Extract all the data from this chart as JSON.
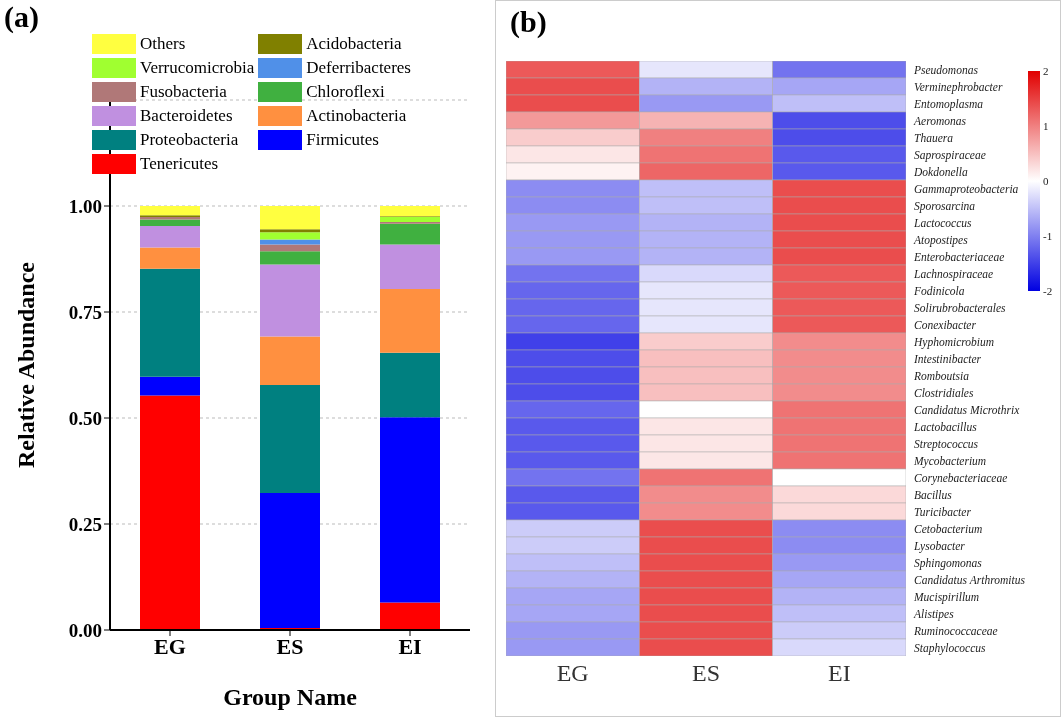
{
  "chart_data": [
    {
      "type": "bar",
      "title": "(a)",
      "xlabel": "Group Name",
      "ylabel": "Relative Abundance",
      "stacked": true,
      "categories": [
        "EG",
        "ES",
        "EI"
      ],
      "ylim": [
        0,
        1.25
      ],
      "yticks": [
        {
          "value": 0,
          "label": "0.00"
        },
        {
          "value": 0.25,
          "label": "0.25"
        },
        {
          "value": 0.5,
          "label": "0.50"
        },
        {
          "value": 0.75,
          "label": "0.75"
        },
        {
          "value": 1,
          "label": "1.00"
        }
      ],
      "grid": "y",
      "legend": "top left",
      "series": [
        {
          "name": "Tenericutes",
          "color": "#ff0000",
          "values": [
            0.553,
            0.005,
            0.065
          ]
        },
        {
          "name": "Firmicutes",
          "color": "#0000ff",
          "values": [
            0.044,
            0.318,
            0.437
          ]
        },
        {
          "name": "Proteobacteria",
          "color": "#008080",
          "values": [
            0.255,
            0.255,
            0.152
          ]
        },
        {
          "name": "Actinobacteria",
          "color": "#ff9040",
          "values": [
            0.05,
            0.114,
            0.15
          ]
        },
        {
          "name": "Bacteroidetes",
          "color": "#c090e0",
          "values": [
            0.051,
            0.17,
            0.105
          ]
        },
        {
          "name": "Chloroflexi",
          "color": "#40b040",
          "values": [
            0.015,
            0.031,
            0.049
          ]
        },
        {
          "name": "Fusobacteria",
          "color": "#b07878",
          "values": [
            0.006,
            0.016,
            0.004
          ]
        },
        {
          "name": "Deferribacteres",
          "color": "#5090e8",
          "values": [
            0,
            0.012,
            0
          ]
        },
        {
          "name": "Verrucomicrobia",
          "color": "#a0ff30",
          "values": [
            0,
            0.017,
            0.012
          ]
        },
        {
          "name": "Acidobacteria",
          "color": "#808000",
          "values": [
            0.004,
            0.007,
            0.002
          ]
        },
        {
          "name": "Others",
          "color": "#ffff40",
          "values": [
            0.022,
            0.055,
            0.024
          ]
        }
      ]
    },
    {
      "type": "heatmap",
      "title": "(b)",
      "categories": [
        "EG",
        "ES",
        "EI"
      ],
      "clim": [
        -2,
        2
      ],
      "cticks": [
        -2,
        -1,
        0,
        1,
        2
      ],
      "y_categories": [
        "Pseudomonas",
        "Verminephrobacter",
        "Entomoplasma",
        "Aeromonas",
        "Thauera",
        "Saprospiraceae",
        "Dokdonella",
        "Gammaproteobacteria",
        "Sporosarcina",
        "Lactococcus",
        "Atopostipes",
        "Enterobacteriaceae",
        "Lachnospiraceae",
        " Fodinicola",
        "Solirubrobacterales",
        "Conexibacter",
        "Hyphomicrobium",
        "Intestinibacter",
        "Romboutsia",
        "Clostridiales",
        "Candidatus Microthrix",
        "Lactobacillus",
        "Streptococcus",
        "Mycobacterium",
        "Corynebacteriaceae",
        "Bacillus",
        "Turicibacter",
        "Cetobacterium",
        "Lysobacter",
        "Sphingomonas",
        "Candidatus Arthromitus",
        "Mucispirillum",
        "Alistipes",
        "Ruminococcaceae",
        "Staphylococcus"
      ],
      "cells": [
        [
          1.3,
          -0.2,
          -1.1
        ],
        [
          1.4,
          -0.6,
          -0.7
        ],
        [
          1.4,
          -0.8,
          -0.5
        ],
        [
          0.8,
          0.6,
          -1.4
        ],
        [
          0.4,
          1.0,
          -1.4
        ],
        [
          0.2,
          1.1,
          -1.3
        ],
        [
          0.1,
          1.2,
          -1.3
        ],
        [
          -0.9,
          -0.5,
          1.4
        ],
        [
          -0.9,
          -0.5,
          1.4
        ],
        [
          -0.8,
          -0.6,
          1.4
        ],
        [
          -0.8,
          -0.6,
          1.4
        ],
        [
          -0.8,
          -0.6,
          1.4
        ],
        [
          -1.1,
          -0.3,
          1.3
        ],
        [
          -1.2,
          -0.2,
          1.3
        ],
        [
          -1.2,
          -0.2,
          1.3
        ],
        [
          -1.2,
          -0.2,
          1.3
        ],
        [
          -1.5,
          0.4,
          0.9
        ],
        [
          -1.4,
          0.5,
          0.9
        ],
        [
          -1.4,
          0.5,
          0.9
        ],
        [
          -1.4,
          0.5,
          0.9
        ],
        [
          -1.2,
          0.0,
          1.1
        ],
        [
          -1.3,
          0.2,
          1.1
        ],
        [
          -1.3,
          0.2,
          1.1
        ],
        [
          -1.3,
          0.2,
          1.1
        ],
        [
          -1.1,
          1.1,
          0.0
        ],
        [
          -1.3,
          0.9,
          0.3
        ],
        [
          -1.3,
          0.9,
          0.3
        ],
        [
          -0.4,
          1.4,
          -0.9
        ],
        [
          -0.4,
          1.4,
          -0.9
        ],
        [
          -0.5,
          1.4,
          -0.8
        ],
        [
          -0.6,
          1.4,
          -0.7
        ],
        [
          -0.7,
          1.4,
          -0.6
        ],
        [
          -0.7,
          1.4,
          -0.5
        ],
        [
          -0.8,
          1.4,
          -0.4
        ],
        [
          -0.8,
          1.4,
          -0.3
        ]
      ]
    }
  ]
}
